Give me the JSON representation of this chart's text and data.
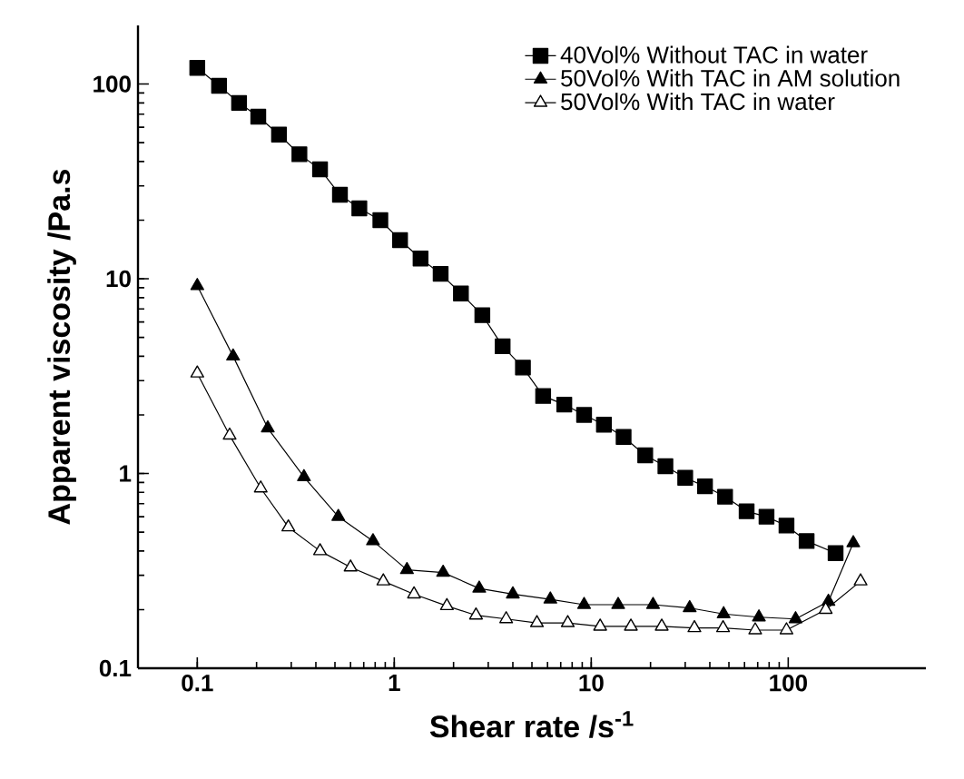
{
  "chart_data": {
    "type": "line",
    "xlabel": "Shear rate /s$^{-1}$",
    "ylabel": "Apparent viscosity /Pa.s",
    "log": "xy",
    "legend": "top right",
    "xlim": [
      0.05,
      500
    ],
    "ylim": [
      0.1,
      200
    ],
    "xticks": [
      0.1,
      1,
      10,
      100
    ],
    "yticks": [
      0.1,
      1,
      10,
      100
    ],
    "line_style": "solid",
    "series": [
      {
        "name": "40Vol% Without TAC in water",
        "color": "#000000",
        "marker": "square",
        "x": [
          0.1,
          0.129,
          0.163,
          0.204,
          0.26,
          0.33,
          0.42,
          0.53,
          0.665,
          0.85,
          1.07,
          1.36,
          1.72,
          2.18,
          2.8,
          3.55,
          4.5,
          5.7,
          7.3,
          9.2,
          11.6,
          14.6,
          18.8,
          23.8,
          30,
          37.8,
          47.8,
          61.5,
          77.6,
          98,
          124,
          174
        ],
        "values": [
          121,
          98,
          80,
          68,
          55,
          43.6,
          36.5,
          27,
          23,
          20,
          15.8,
          12.7,
          10.6,
          8.4,
          6.5,
          4.5,
          3.5,
          2.5,
          2.26,
          2.0,
          1.78,
          1.54,
          1.24,
          1.09,
          0.95,
          0.86,
          0.76,
          0.64,
          0.6,
          0.54,
          0.45,
          0.39
        ]
      },
      {
        "name": "50Vol% With TAC in AM solution",
        "color": "#000000",
        "marker": "triangle",
        "x": [
          0.1,
          0.152,
          0.228,
          0.348,
          0.52,
          0.78,
          1.16,
          1.77,
          2.7,
          4.0,
          6.2,
          9.2,
          13.7,
          20.6,
          31.6,
          47,
          71,
          109,
          160,
          214
        ],
        "values": [
          9.2,
          4.0,
          1.71,
          0.96,
          0.6,
          0.45,
          0.32,
          0.31,
          0.257,
          0.24,
          0.226,
          0.212,
          0.212,
          0.212,
          0.204,
          0.19,
          0.183,
          0.179,
          0.22,
          0.44
        ]
      },
      {
        "name": "50Vol% With TAC in water",
        "color": "#000000",
        "marker": "triangle",
        "x": [
          0.1,
          0.146,
          0.21,
          0.29,
          0.42,
          0.6,
          0.88,
          1.26,
          1.85,
          2.6,
          3.7,
          5.3,
          7.6,
          11.1,
          15.9,
          22.8,
          33.4,
          46.7,
          68,
          98,
          155,
          233
        ],
        "values": [
          3.27,
          1.57,
          0.84,
          0.53,
          0.4,
          0.33,
          0.28,
          0.24,
          0.209,
          0.187,
          0.179,
          0.171,
          0.171,
          0.164,
          0.164,
          0.164,
          0.161,
          0.161,
          0.157,
          0.157,
          0.2,
          0.28
        ]
      }
    ]
  }
}
